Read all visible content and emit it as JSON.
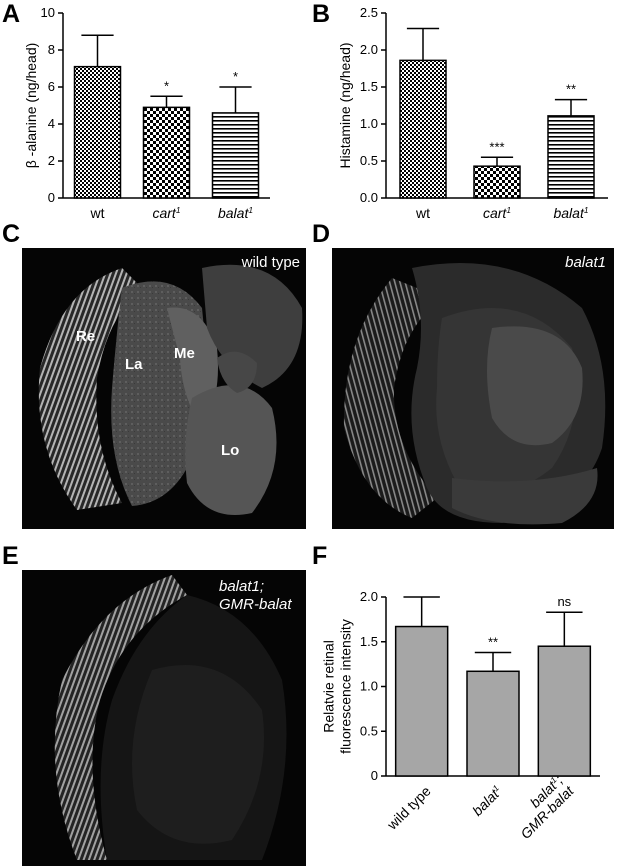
{
  "panels": {
    "a": {
      "letter": "A"
    },
    "b": {
      "letter": "B"
    },
    "c": {
      "letter": "C",
      "label": "wild type",
      "regions": {
        "re": "Re",
        "la": "La",
        "me": "Me",
        "lo": "Lo"
      }
    },
    "d": {
      "letter": "D",
      "label": "balat1"
    },
    "e": {
      "letter": "E",
      "label": "balat1;\nGMR-balat"
    },
    "f": {
      "letter": "F"
    }
  },
  "chart_data": [
    {
      "panel": "A",
      "type": "bar",
      "categories": [
        "wt",
        "cart1",
        "balat1"
      ],
      "values": [
        7.1,
        4.9,
        4.6
      ],
      "errors": [
        1.7,
        0.6,
        1.4
      ],
      "significance": [
        "",
        "*",
        "*"
      ],
      "fill_patterns": [
        "checker-small",
        "checker-large",
        "horizontal-stripes"
      ],
      "ylabel": "β -alanine (ng/head)",
      "ylim": [
        0,
        10
      ],
      "yticks": [
        "0",
        "2",
        "4",
        "6",
        "8",
        "10"
      ]
    },
    {
      "panel": "B",
      "type": "bar",
      "categories": [
        "wt",
        "cart1",
        "balat1"
      ],
      "values": [
        1.86,
        0.43,
        1.11
      ],
      "errors": [
        0.43,
        0.12,
        0.22
      ],
      "significance": [
        "",
        "***",
        "**"
      ],
      "fill_patterns": [
        "checker-small",
        "checker-large",
        "horizontal-stripes"
      ],
      "ylabel": "Histamine (ng/head)",
      "ylim": [
        0,
        2.5
      ],
      "yticks": [
        "0.0",
        "0.5",
        "1.0",
        "1.5",
        "2.0",
        "2.5"
      ]
    },
    {
      "panel": "F",
      "type": "bar",
      "categories": [
        "wild type",
        "balat1",
        "balat1;\nGMR-balat"
      ],
      "values": [
        1.67,
        1.17,
        1.45
      ],
      "errors": [
        0.33,
        0.21,
        0.38
      ],
      "significance": [
        "",
        "**",
        "ns"
      ],
      "bar_color": "#a6a6a6",
      "ylabel": "Relatvie retinal\nfluorescence intensity",
      "ylim": [
        0,
        2.0
      ],
      "yticks": [
        "0",
        "0.5",
        "1.0",
        "1.5",
        "2.0"
      ]
    }
  ]
}
